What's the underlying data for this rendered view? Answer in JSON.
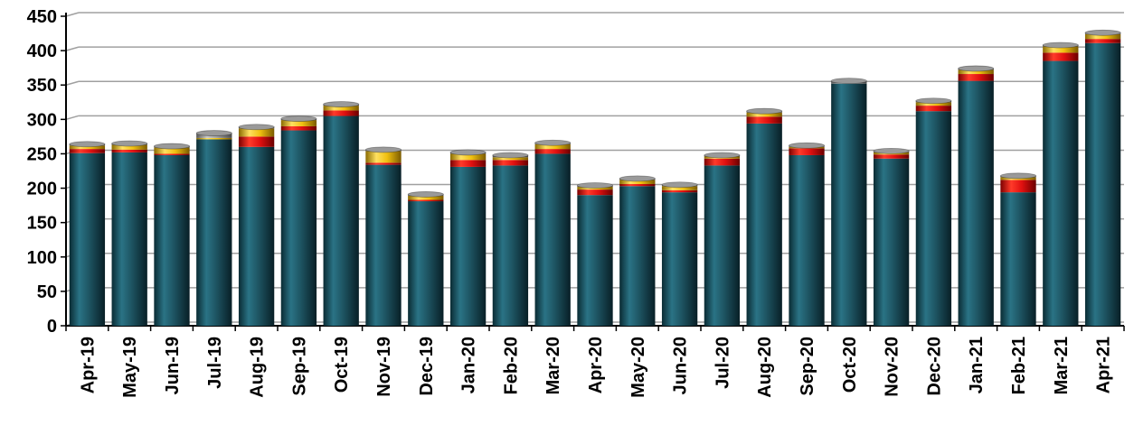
{
  "chart_data": {
    "type": "bar",
    "stacked": true,
    "categories": [
      "Apr-19",
      "May-19",
      "Jun-19",
      "Jul-19",
      "Aug-19",
      "Sep-19",
      "Oct-19",
      "Nov-19",
      "Dec-19",
      "Jan-20",
      "Feb-20",
      "Mar-20",
      "Apr-20",
      "May-20",
      "Jun-20",
      "Jul-20",
      "Aug-20",
      "Sep-20",
      "Oct-20",
      "Nov-20",
      "Dec-20",
      "Jan-21",
      "Feb-21",
      "Mar-21",
      "Apr-21"
    ],
    "series": [
      {
        "color": "#1e5563",
        "values": [
          251,
          252,
          248,
          271,
          260,
          284,
          305,
          234,
          181,
          231,
          233,
          250,
          190,
          203,
          194,
          233,
          294,
          248,
          352,
          243,
          312,
          356,
          194,
          385,
          411
        ]
      },
      {
        "color": "#e01010",
        "values": [
          6,
          4,
          2,
          0,
          15,
          6,
          8,
          3,
          2,
          10,
          8,
          7,
          8,
          3,
          3,
          10,
          10,
          10,
          0,
          6,
          8,
          10,
          18,
          12,
          6
        ]
      },
      {
        "color": "#f0c010",
        "values": [
          5,
          7,
          9,
          2,
          12,
          9,
          7,
          17,
          6,
          9,
          4,
          7,
          4,
          6,
          6,
          3,
          6,
          2,
          0,
          3,
          5,
          6,
          4,
          9,
          7
        ]
      },
      {
        "color": "#9a9a9a",
        "values": [
          2,
          2,
          2,
          7,
          2,
          2,
          2,
          2,
          2,
          2,
          3,
          2,
          2,
          2,
          2,
          2,
          2,
          2,
          4,
          2,
          2,
          2,
          2,
          2,
          2
        ]
      }
    ],
    "ylim": [
      0,
      450
    ],
    "yticks": [
      "0",
      "50",
      "100",
      "150",
      "200",
      "250",
      "300",
      "350",
      "400",
      "450"
    ],
    "grid": true
  }
}
